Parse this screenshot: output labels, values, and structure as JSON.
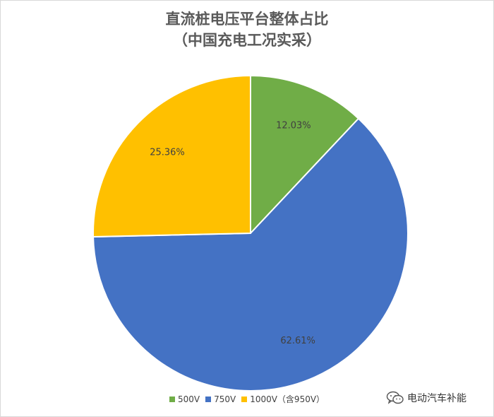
{
  "chart_data": {
    "type": "pie",
    "title": "直流桩电压平台整体占比",
    "subtitle": "（中国充电工况实采）",
    "slices": [
      {
        "label": "500V",
        "value": 12.03,
        "display": "12.03%",
        "color": "#70ad47"
      },
      {
        "label": "750V",
        "value": 62.61,
        "display": "62.61%",
        "color": "#4472c4"
      },
      {
        "label": "1000V（含950V）",
        "value": 25.36,
        "display": "25.36%",
        "color": "#ffc000"
      }
    ],
    "legend_position": "bottom"
  },
  "watermark": {
    "text": "电动汽车补能",
    "icon": "wechat-icon"
  }
}
